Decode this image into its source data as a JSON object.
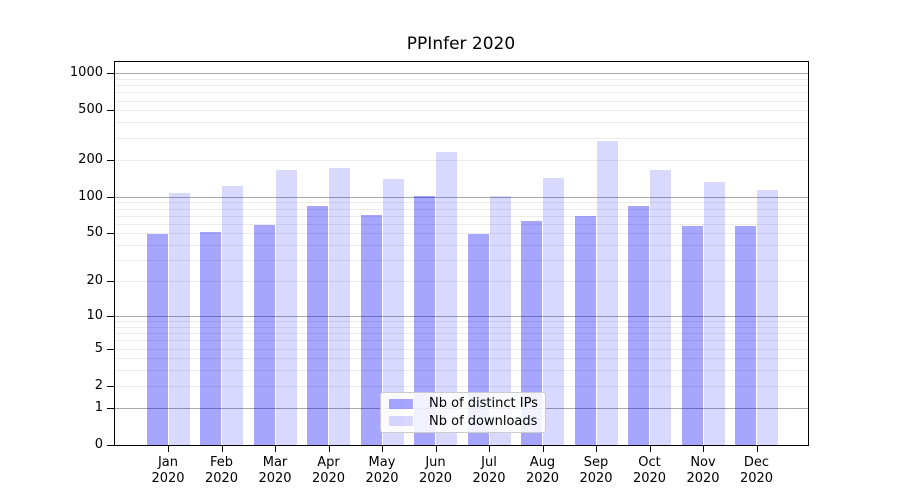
{
  "chart_data": {
    "type": "bar",
    "title": "PPInfer 2020",
    "categories": [
      "Jan",
      "Feb",
      "Mar",
      "Apr",
      "May",
      "Jun",
      "Jul",
      "Aug",
      "Sep",
      "Oct",
      "Nov",
      "Dec"
    ],
    "category_year": "2020",
    "series": [
      {
        "name": "Nb of distinct IPs",
        "color": "rgba(0,0,255,0.35)",
        "values": [
          49,
          51,
          59,
          84,
          71,
          101,
          49,
          63,
          69,
          84,
          58,
          57
        ]
      },
      {
        "name": "Nb of downloads",
        "color": "rgba(0,0,255,0.15)",
        "values": [
          108,
          122,
          164,
          171,
          139,
          231,
          102,
          141,
          282,
          164,
          131,
          114
        ]
      }
    ],
    "xlabel": "",
    "ylabel": "",
    "yscale": "log1p",
    "ylim": [
      0,
      1230
    ],
    "yticks": [
      1000,
      500,
      200,
      100,
      50,
      20,
      10,
      5,
      2,
      1,
      0
    ],
    "grid": {
      "major_color": "#a8a8a8",
      "minor_color": "#ebebeb",
      "minor_decades": [
        1,
        10,
        100
      ]
    },
    "legend_position": "lower center"
  }
}
